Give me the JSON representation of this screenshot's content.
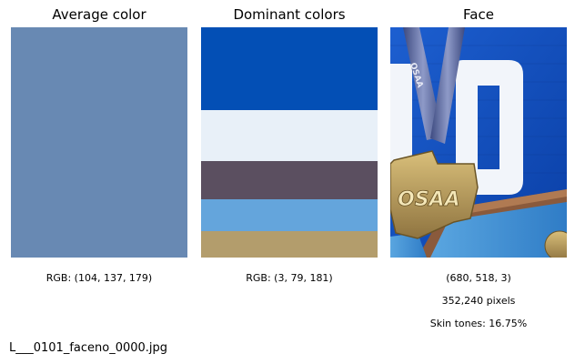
{
  "panels": {
    "average": {
      "title": "Average color",
      "color": "#6889b3",
      "caption": "RGB: (104, 137, 179)"
    },
    "dominant": {
      "title": "Dominant colors",
      "stripes": [
        {
          "color": "#034fb5",
          "share": 0.36
        },
        {
          "color": "#e8f0f8",
          "share": 0.22
        },
        {
          "color": "#5b4f60",
          "share": 0.165
        },
        {
          "color": "#64a5dc",
          "share": 0.14
        },
        {
          "color": "#b39d6c",
          "share": 0.125
        }
      ],
      "caption": "RGB: (3, 79, 181)"
    },
    "face": {
      "title": "Face",
      "caption_shape": "(680, 518, 3)",
      "caption_pixels": "352,240 pixels",
      "caption_skin": "Skin tones: 16.75%",
      "medal_text": "OSAA",
      "ribbon_text": "OSAA"
    }
  },
  "filename": "L___0101_faceno_0000.jpg"
}
